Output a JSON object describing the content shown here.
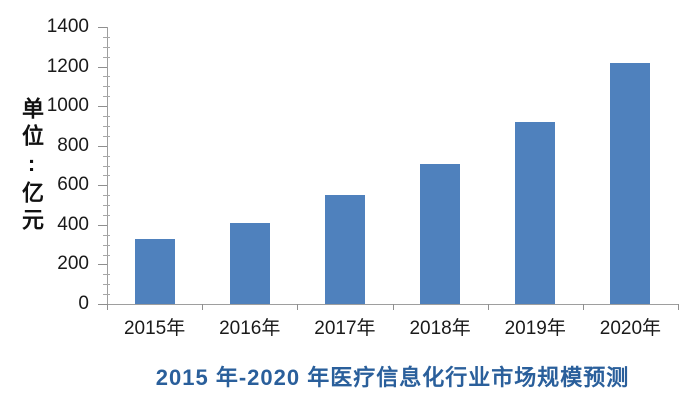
{
  "chart_data": {
    "type": "bar",
    "title": "2015 年-2020 年医疗信息化行业市场规模预测",
    "ylabel": "单位:亿元",
    "categories": [
      "2015年",
      "2016年",
      "2017年",
      "2018年",
      "2019年",
      "2020年"
    ],
    "values": [
      330,
      410,
      550,
      710,
      920,
      1220
    ],
    "ylim": [
      0,
      1400
    ],
    "y_major_tick_step": 200,
    "y_minor_tick_step": 50,
    "grid": false,
    "legend": false,
    "colors": {
      "bar_fill": "#4f81bd",
      "title_text": "#2a5f9b",
      "axis_line": "#9e9e9e",
      "tick_mark": "#8f8f8f",
      "tick_label_text": "#1a1a1a"
    }
  }
}
